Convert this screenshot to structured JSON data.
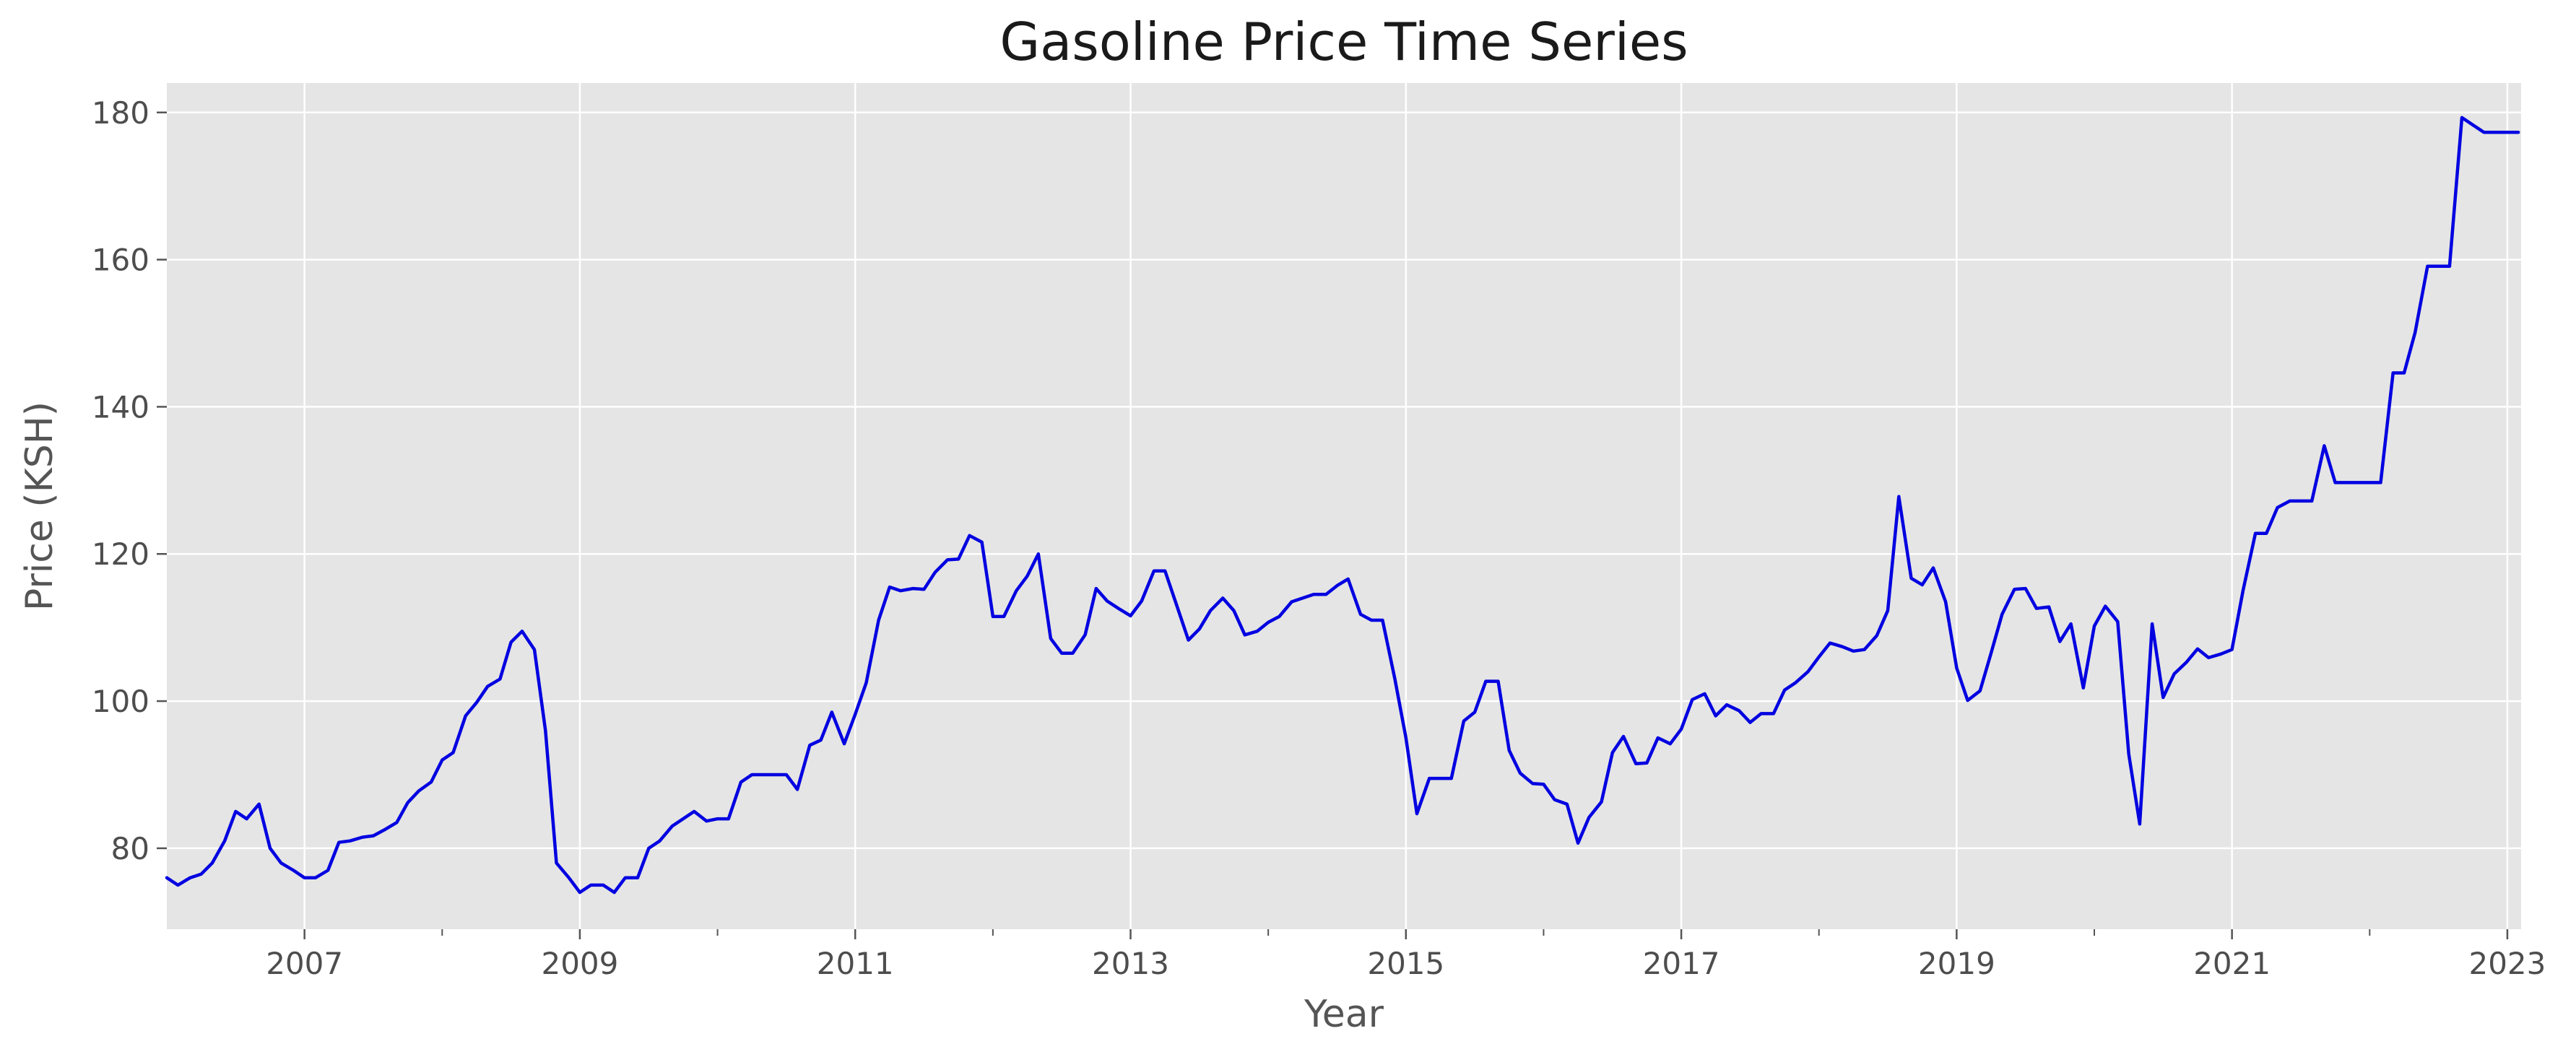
{
  "chart_data": {
    "type": "line",
    "title": "Gasoline Price Time Series",
    "xlabel": "Year",
    "ylabel": "Price (KSH)",
    "xlim": [
      2006.0,
      2023.1
    ],
    "ylim": [
      69,
      184
    ],
    "x_ticks": [
      "2007",
      "2009",
      "2011",
      "2013",
      "2015",
      "2017",
      "2019",
      "2021",
      "2023"
    ],
    "y_ticks": [
      "80",
      "100",
      "120",
      "140",
      "160",
      "180"
    ],
    "grid": true,
    "legend": "none",
    "colors": {
      "line": "#0000e0",
      "plot_bg": "#e5e5e5",
      "grid": "#ffffff"
    },
    "series": [
      {
        "x": [
          2006.0,
          2006.08,
          2006.17,
          2006.25,
          2006.33,
          2006.42,
          2006.5,
          2006.58,
          2006.67,
          2006.75,
          2006.83,
          2006.92,
          2007.0,
          2007.08,
          2007.17,
          2007.25,
          2007.33,
          2007.42,
          2007.5,
          2007.58,
          2007.67,
          2007.75,
          2007.83,
          2007.92,
          2008.0,
          2008.08,
          2008.17,
          2008.25,
          2008.33,
          2008.42,
          2008.5,
          2008.58,
          2008.67,
          2008.75,
          2008.83,
          2008.92,
          2009.0,
          2009.08,
          2009.17,
          2009.25,
          2009.33,
          2009.42,
          2009.5,
          2009.58,
          2009.67,
          2009.75,
          2009.83,
          2009.92,
          2010.0,
          2010.08,
          2010.17,
          2010.25,
          2010.33,
          2010.42,
          2010.5,
          2010.58,
          2010.67,
          2010.75,
          2010.83,
          2010.92,
          2011.0,
          2011.08,
          2011.17,
          2011.25,
          2011.33,
          2011.42,
          2011.5,
          2011.58,
          2011.67,
          2011.75,
          2011.83,
          2011.92,
          2012.0,
          2012.08,
          2012.17,
          2012.25,
          2012.33,
          2012.42,
          2012.5,
          2012.58,
          2012.67,
          2012.75,
          2012.83,
          2012.92,
          2013.0,
          2013.08,
          2013.17,
          2013.25,
          2013.33,
          2013.42,
          2013.5,
          2013.58,
          2013.67,
          2013.75,
          2013.83,
          2013.92,
          2014.0,
          2014.08,
          2014.17,
          2014.25,
          2014.33,
          2014.42,
          2014.5,
          2014.58,
          2014.67,
          2014.75,
          2014.83,
          2014.92,
          2015.0,
          2015.08,
          2015.17,
          2015.25,
          2015.33,
          2015.42,
          2015.5,
          2015.58,
          2015.67,
          2015.75,
          2015.83,
          2015.92,
          2016.0,
          2016.08,
          2016.17,
          2016.25,
          2016.33,
          2016.42,
          2016.5,
          2016.58,
          2016.67,
          2016.75,
          2016.83,
          2016.92,
          2017.0,
          2017.08,
          2017.17,
          2017.25,
          2017.33,
          2017.42,
          2017.5,
          2017.58,
          2017.67,
          2017.75,
          2017.83,
          2017.92,
          2018.0,
          2018.08,
          2018.17,
          2018.25,
          2018.33,
          2018.42,
          2018.5,
          2018.58,
          2018.67,
          2018.75,
          2018.83,
          2018.92,
          2019.0,
          2019.08,
          2019.17,
          2019.25,
          2019.33,
          2019.42,
          2019.5,
          2019.58,
          2019.67,
          2019.75,
          2019.83,
          2019.92,
          2020.0,
          2020.08,
          2020.17,
          2020.25,
          2020.33,
          2020.42,
          2020.5,
          2020.58,
          2020.67,
          2020.75,
          2020.83,
          2020.92,
          2021.0,
          2021.08,
          2021.17,
          2021.25,
          2021.33,
          2021.42,
          2021.5,
          2021.58,
          2021.67,
          2021.75,
          2021.83,
          2021.92,
          2022.0,
          2022.08,
          2022.17,
          2022.25,
          2022.33,
          2022.42,
          2022.5,
          2022.58,
          2022.67,
          2022.75,
          2022.83,
          2022.92,
          2023.0,
          2023.08
        ],
        "values": [
          76,
          75,
          76,
          76.5,
          78,
          81,
          85,
          84,
          86,
          80,
          78,
          77,
          76,
          76,
          77,
          80.8,
          81,
          81.5,
          81.7,
          82.5,
          83.5,
          86.2,
          87.8,
          89,
          92,
          93,
          98,
          99.8,
          102,
          103,
          108,
          109.5,
          107,
          96,
          78,
          76,
          74,
          75,
          75,
          74,
          76,
          76,
          80,
          81,
          83,
          84,
          85,
          83.7,
          84,
          84,
          89,
          90,
          90,
          90,
          90,
          88,
          94,
          94.7,
          98.5,
          94.2,
          98.2,
          102.5,
          111,
          115.5,
          115,
          115.3,
          115.2,
          117.5,
          119.2,
          119.3,
          122.5,
          121.6,
          111.5,
          111.5,
          115,
          117,
          120,
          108.5,
          106.5,
          106.5,
          109,
          115.3,
          113.6,
          112.5,
          111.6,
          113.6,
          117.7,
          117.7,
          113.3,
          108.3,
          109.8,
          112.3,
          114,
          112.3,
          109,
          109.5,
          110.7,
          111.5,
          113.5,
          114,
          114.5,
          114.5,
          115.7,
          116.6,
          111.8,
          111,
          111,
          103,
          95,
          84.7,
          89.5,
          89.5,
          89.5,
          97.3,
          98.5,
          102.7,
          102.7,
          93.3,
          90.2,
          88.8,
          88.7,
          86.6,
          86,
          80.7,
          84.2,
          86.3,
          93,
          95.2,
          91.5,
          91.6,
          95,
          94.2,
          96.2,
          100.2,
          101,
          98,
          99.5,
          98.7,
          97.1,
          98.3,
          98.3,
          101.5,
          102.5,
          104,
          106,
          107.9,
          107.4,
          106.8,
          107,
          108.9,
          112.3,
          127.8,
          116.7,
          115.8,
          118.1,
          113.5,
          104.5,
          100.1,
          101.4,
          106.5,
          111.8,
          115.2,
          115.3,
          112.6,
          112.8,
          108.1,
          110.5,
          101.8,
          110.2,
          112.9,
          110.8,
          92.8,
          83.3,
          110.5,
          100.5,
          103.7,
          105.3,
          107.1,
          105.9,
          106.4,
          107,
          115,
          122.8,
          122.8,
          126.3,
          127.2,
          127.2,
          127.2,
          134.7,
          129.7,
          129.7,
          129.7,
          129.7,
          129.7,
          144.6,
          144.6,
          150.1,
          159.1,
          159.1,
          159.1,
          179.3,
          178.3,
          177.3,
          177.3,
          177.3,
          177.3
        ]
      }
    ]
  }
}
